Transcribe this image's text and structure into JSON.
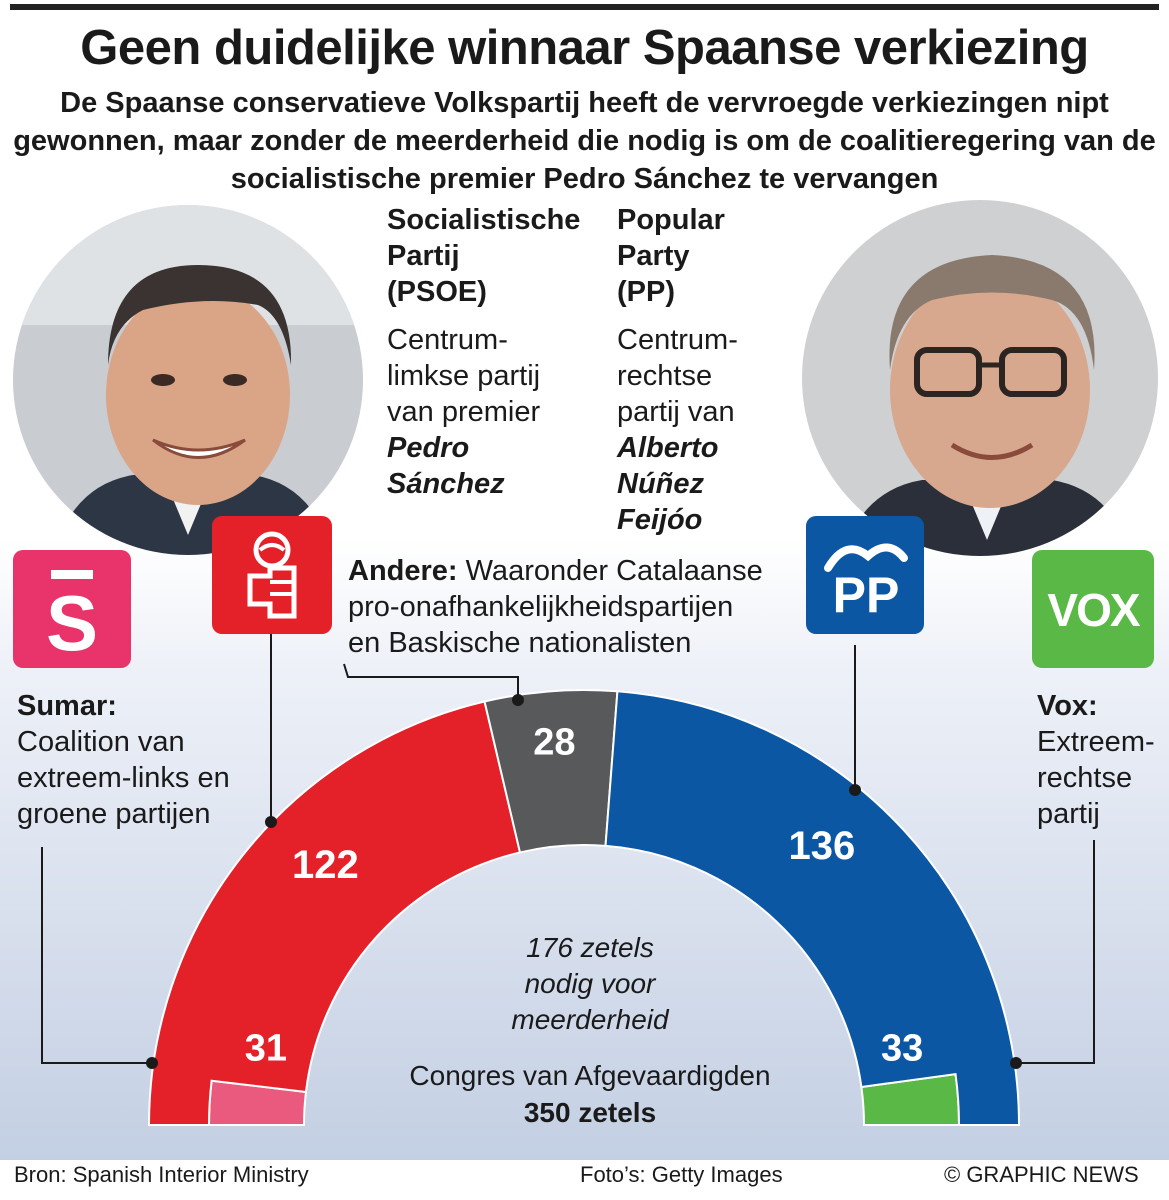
{
  "title": "Geen duidelijke winnaar Spaanse verkiezing",
  "subtitle": "De Spaanse conservatieve Volkspartij heeft de vervroegde verkiezingen nipt gewonnen, maar zonder de meerderheid die nodig is om de coalitieregering van de socialistische premier Pedro Sánchez te vervangen",
  "psoe": {
    "name_lines": [
      "Socialistische",
      "Partij",
      "(PSOE)"
    ],
    "desc_lines": [
      "Centrum-",
      "limkse partij",
      "van premier"
    ],
    "leader_lines": [
      "Pedro",
      "Sánchez"
    ]
  },
  "pp": {
    "name_lines": [
      "Popular",
      "Party",
      "(PP)"
    ],
    "desc_lines": [
      "Centrum-",
      "rechtse",
      "partij van"
    ],
    "leader_lines": [
      "Alberto",
      "Núñez",
      "Feijóo"
    ]
  },
  "sumar": {
    "name": "Sumar:",
    "desc_lines": [
      "Coalition van",
      "extreem-links en",
      "groene partijen"
    ]
  },
  "andere": {
    "name": "Andere:",
    "desc_first": "Waaronder Catalaanse",
    "desc_lines": [
      "pro-onafhankelijkheidspartijen",
      "en Baskische nationalisten"
    ]
  },
  "vox": {
    "name": "Vox:",
    "desc_lines": [
      "Extreem-",
      "rechtse",
      "partij"
    ]
  },
  "logos": {
    "sumar": "S",
    "pp": "PP",
    "vox": "VOX"
  },
  "majority_lines": [
    "176 zetels",
    "nodig voor",
    "meerderheid"
  ],
  "chamber": {
    "name": "Congres van Afgevaardigden",
    "total_label": "350 zetels"
  },
  "footer": {
    "source": "Bron: Spanish Interior Ministry",
    "photos": "Foto’s: Getty Images",
    "credit": "© GRAPHIC NEWS"
  },
  "colors": {
    "sumar": "#ea5a7e",
    "psoe": "#e42029",
    "others": "#58595b",
    "pp": "#0b57a4",
    "vox": "#5ab946"
  },
  "chart_data": {
    "type": "pie",
    "style": "parliament-hemicycle",
    "title": "Congres van Afgevaardigden",
    "total": 350,
    "majority": 176,
    "series": [
      {
        "name": "PSOE",
        "value": 122,
        "ring": "outer"
      },
      {
        "name": "Andere",
        "value": 28,
        "ring": "outer"
      },
      {
        "name": "PP",
        "value": 136,
        "ring": "outer"
      },
      {
        "name": "Sumar",
        "value": 31,
        "ring": "inner"
      },
      {
        "name": "Vox",
        "value": 33,
        "ring": "inner"
      }
    ]
  }
}
